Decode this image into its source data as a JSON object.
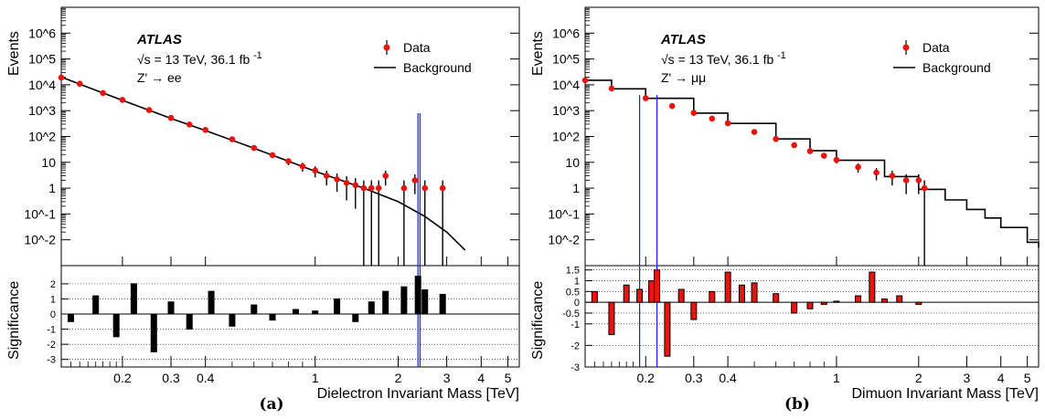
{
  "chart_data": [
    {
      "type": "scatter",
      "panel_label": "(a)",
      "experiment": "ATLAS",
      "energy_text": "√s = 13 TeV, 36.1 fb",
      "energy_sup": "-1",
      "process": "Z' → ee",
      "legend": {
        "position": "top-right",
        "data_label": "Data",
        "background_label": "Background"
      },
      "xlabel": "Dielectron Invariant Mass [TeV]",
      "ylabel": "Events",
      "ratio_ylabel": "Significance",
      "x_scale": "log",
      "y_scale": "log",
      "xlim": [
        0.12,
        5.5
      ],
      "ylim": [
        0.001,
        10000000
      ],
      "ratio_ylim": [
        -3.5,
        3.2
      ],
      "x_tick_labels": [
        "0.2",
        "0.3",
        "0.4",
        "1",
        "2",
        "3",
        "4",
        "5"
      ],
      "y_tick_labels": [
        "10^-2",
        "10^-1",
        "1",
        "10",
        "10^2",
        "10^3",
        "10^4",
        "10^5",
        "10^6"
      ],
      "ratio_tick_labels": [
        "-3",
        "-2",
        "-1",
        "0",
        "1",
        "2"
      ],
      "background": {
        "x": [
          0.12,
          0.15,
          0.2,
          0.3,
          0.4,
          0.6,
          0.8,
          1.0,
          1.5,
          2.0,
          2.5,
          3.0,
          3.5
        ],
        "y": [
          20000,
          8000,
          2500,
          500,
          170,
          35,
          11,
          4.5,
          1.0,
          0.3,
          0.08,
          0.02,
          0.004
        ]
      },
      "data_points": {
        "x": [
          0.12,
          0.14,
          0.17,
          0.2,
          0.25,
          0.3,
          0.35,
          0.4,
          0.5,
          0.6,
          0.7,
          0.8,
          0.9,
          1.0,
          1.1,
          1.2,
          1.3,
          1.4,
          1.5,
          1.6,
          1.7,
          1.8,
          2.1,
          2.3,
          2.5,
          2.9
        ],
        "y": [
          19000,
          11000,
          4800,
          2600,
          1050,
          520,
          290,
          180,
          78,
          36,
          19,
          11,
          7,
          4.8,
          3.0,
          2.2,
          1.6,
          1.3,
          1.0,
          1.0,
          1.0,
          3.0,
          1.0,
          2.0,
          1.0,
          1.0
        ]
      },
      "signal_lines_x": [
        2.36,
        2.4
      ],
      "significance": {
        "x": [
          0.13,
          0.16,
          0.19,
          0.22,
          0.26,
          0.3,
          0.35,
          0.42,
          0.5,
          0.6,
          0.7,
          0.85,
          1.0,
          1.2,
          1.4,
          1.6,
          1.8,
          2.1,
          2.36,
          2.5,
          2.9
        ],
        "y": [
          -0.5,
          1.2,
          -1.5,
          2.0,
          -2.5,
          0.8,
          -1.0,
          1.5,
          -0.8,
          0.6,
          -0.4,
          0.3,
          0.2,
          1.0,
          -0.5,
          0.8,
          1.5,
          1.8,
          2.5,
          1.6,
          1.3
        ]
      }
    },
    {
      "type": "scatter",
      "panel_label": "(b)",
      "experiment": "ATLAS",
      "energy_text": "√s = 13 TeV, 36.1 fb",
      "energy_sup": "-1",
      "process": "Z' → μμ",
      "legend": {
        "position": "top-right",
        "data_label": "Data",
        "background_label": "Background"
      },
      "xlabel": "Dimuon Invariant Mass [TeV]",
      "ylabel": "Events",
      "ratio_ylabel": "Significance",
      "x_scale": "log",
      "y_scale": "log",
      "xlim": [
        0.12,
        5.5
      ],
      "ylim": [
        0.001,
        10000000
      ],
      "ratio_ylim": [
        -3,
        1.7
      ],
      "x_tick_labels": [
        "0.2",
        "0.3",
        "0.4",
        "1",
        "2",
        "3",
        "4",
        "5"
      ],
      "y_tick_labels": [
        "10^-2",
        "10^-1",
        "1",
        "10",
        "10^2",
        "10^3",
        "10^4",
        "10^5",
        "10^6"
      ],
      "ratio_tick_labels": [
        "-3",
        "-2",
        "-1",
        "-0.5",
        "0",
        "0.5",
        "1",
        "1.5"
      ],
      "background": {
        "x": [
          0.12,
          0.15,
          0.2,
          0.3,
          0.4,
          0.6,
          0.8,
          1.0,
          1.5,
          2.0,
          2.5,
          3.0,
          3.5,
          4.0,
          5.0,
          5.5
        ],
        "y": [
          15000,
          7000,
          3000,
          800,
          320,
          80,
          28,
          12,
          2.8,
          0.9,
          0.35,
          0.15,
          0.07,
          0.03,
          0.008,
          0.005
        ]
      },
      "data_points": {
        "x": [
          0.12,
          0.15,
          0.2,
          0.25,
          0.3,
          0.35,
          0.4,
          0.5,
          0.6,
          0.7,
          0.8,
          0.9,
          1.0,
          1.2,
          1.4,
          1.6,
          1.8,
          2.0,
          2.1
        ],
        "y": [
          15000,
          7200,
          3050,
          1500,
          820,
          490,
          325,
          150,
          80,
          46,
          27,
          18,
          12.5,
          6.5,
          4.0,
          3.0,
          2.0,
          2.0,
          1.0
        ]
      },
      "signal_lines_x": [
        0.19,
        0.22
      ],
      "significance": {
        "x": [
          0.13,
          0.15,
          0.17,
          0.19,
          0.21,
          0.22,
          0.24,
          0.27,
          0.3,
          0.35,
          0.4,
          0.45,
          0.5,
          0.6,
          0.7,
          0.8,
          0.9,
          1.0,
          1.2,
          1.35,
          1.5,
          1.7,
          2.0
        ],
        "y": [
          0.5,
          -1.5,
          0.8,
          0.6,
          1.0,
          1.5,
          -2.5,
          0.6,
          -0.8,
          0.5,
          1.4,
          0.8,
          0.9,
          0.4,
          -0.5,
          -0.3,
          -0.1,
          0.05,
          0.3,
          1.4,
          0.15,
          0.3,
          -0.1
        ]
      }
    }
  ]
}
